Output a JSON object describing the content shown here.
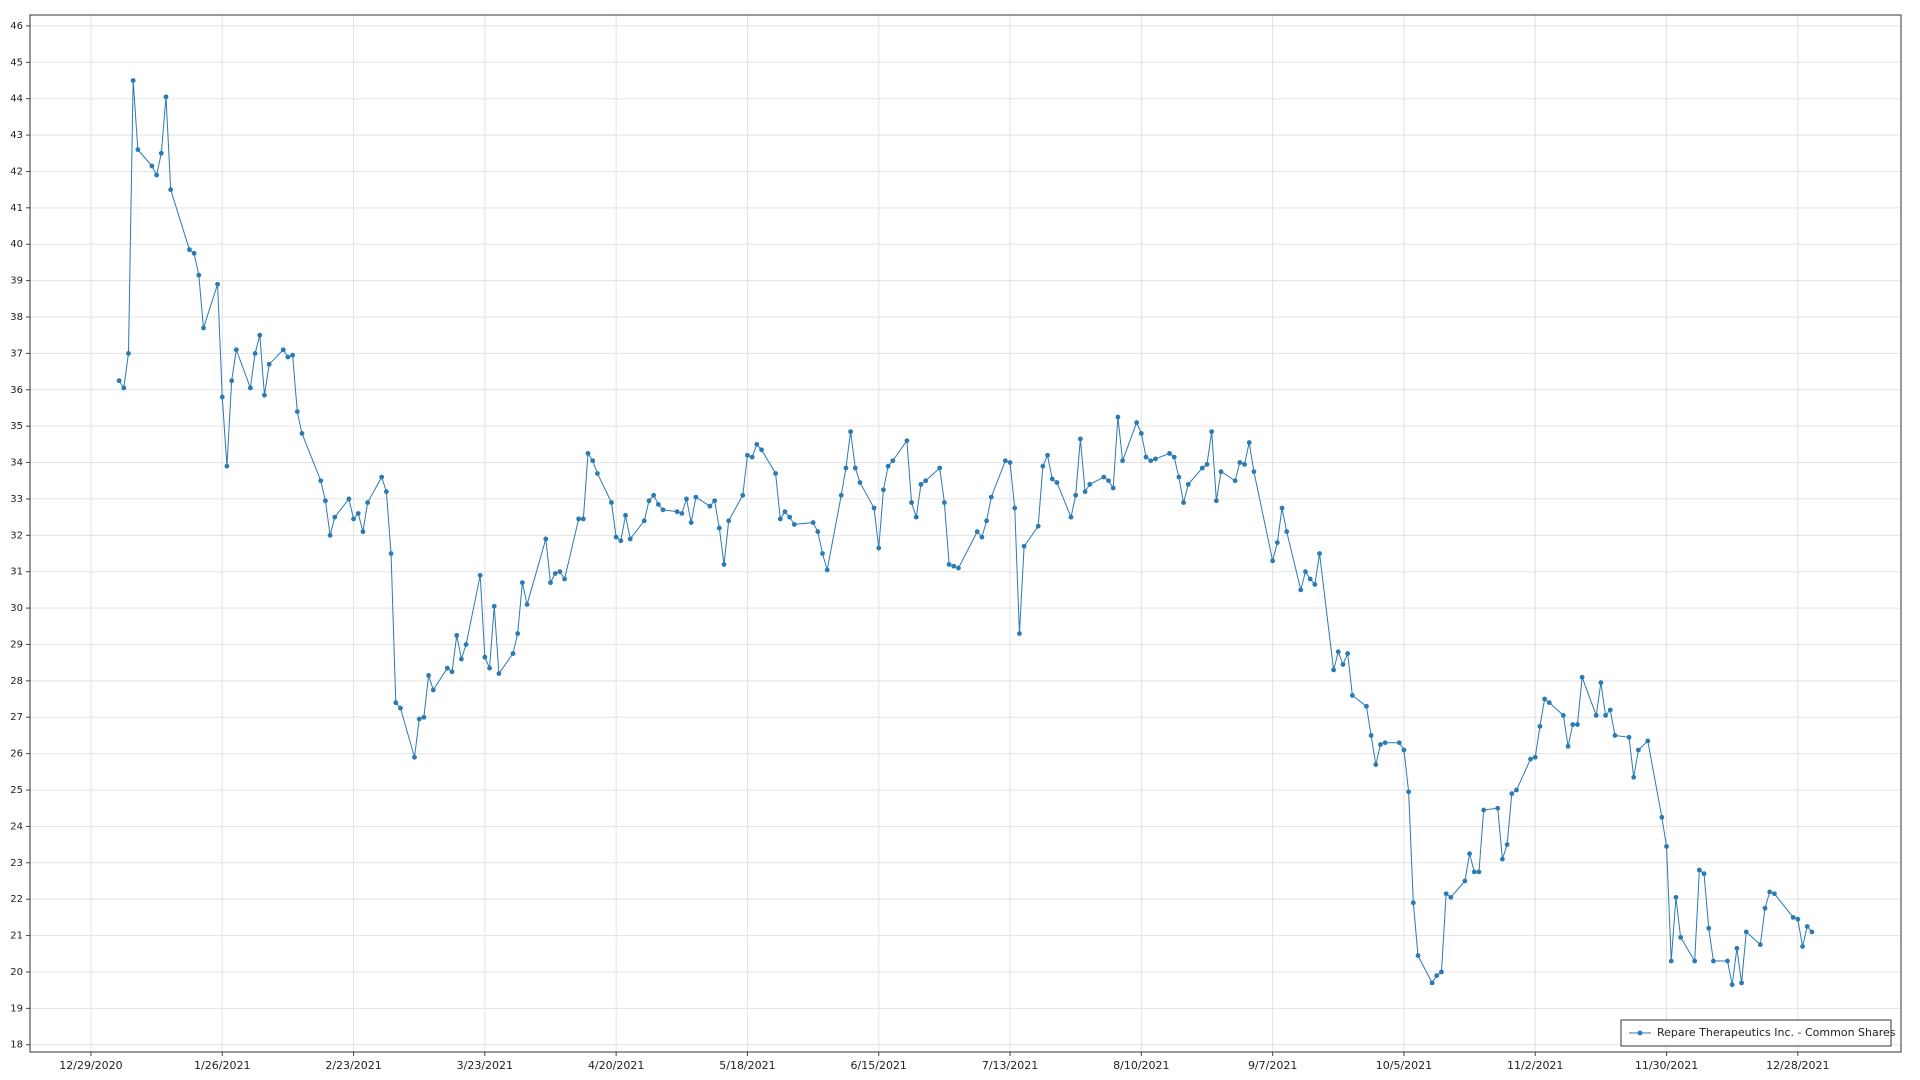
{
  "chart_data": {
    "type": "line",
    "x": [
      "1/4/2021",
      "1/5/2021",
      "1/6/2021",
      "1/7/2021",
      "1/8/2021",
      "1/11/2021",
      "1/12/2021",
      "1/13/2021",
      "1/14/2021",
      "1/15/2021",
      "1/19/2021",
      "1/20/2021",
      "1/21/2021",
      "1/22/2021",
      "1/25/2021",
      "1/26/2021",
      "1/27/2021",
      "1/28/2021",
      "1/29/2021",
      "2/1/2021",
      "2/2/2021",
      "2/3/2021",
      "2/4/2021",
      "2/5/2021",
      "2/8/2021",
      "2/9/2021",
      "2/10/2021",
      "2/11/2021",
      "2/12/2021",
      "2/16/2021",
      "2/17/2021",
      "2/18/2021",
      "2/19/2021",
      "2/22/2021",
      "2/23/2021",
      "2/24/2021",
      "2/25/2021",
      "2/26/2021",
      "3/1/2021",
      "3/2/2021",
      "3/3/2021",
      "3/4/2021",
      "3/5/2021",
      "3/8/2021",
      "3/9/2021",
      "3/10/2021",
      "3/11/2021",
      "3/12/2021",
      "3/15/2021",
      "3/16/2021",
      "3/17/2021",
      "3/18/2021",
      "3/19/2021",
      "3/22/2021",
      "3/23/2021",
      "3/24/2021",
      "3/25/2021",
      "3/26/2021",
      "3/29/2021",
      "3/30/2021",
      "3/31/2021",
      "4/1/2021",
      "4/5/2021",
      "4/6/2021",
      "4/7/2021",
      "4/8/2021",
      "4/9/2021",
      "4/12/2021",
      "4/13/2021",
      "4/14/2021",
      "4/15/2021",
      "4/16/2021",
      "4/19/2021",
      "4/20/2021",
      "4/21/2021",
      "4/22/2021",
      "4/23/2021",
      "4/26/2021",
      "4/27/2021",
      "4/28/2021",
      "4/29/2021",
      "4/30/2021",
      "5/3/2021",
      "5/4/2021",
      "5/5/2021",
      "5/6/2021",
      "5/7/2021",
      "5/10/2021",
      "5/11/2021",
      "5/12/2021",
      "5/13/2021",
      "5/14/2021",
      "5/17/2021",
      "5/18/2021",
      "5/19/2021",
      "5/20/2021",
      "5/21/2021",
      "5/24/2021",
      "5/25/2021",
      "5/26/2021",
      "5/27/2021",
      "5/28/2021",
      "6/1/2021",
      "6/2/2021",
      "6/3/2021",
      "6/4/2021",
      "6/7/2021",
      "6/8/2021",
      "6/9/2021",
      "6/10/2021",
      "6/11/2021",
      "6/14/2021",
      "6/15/2021",
      "6/16/2021",
      "6/17/2021",
      "6/18/2021",
      "6/21/2021",
      "6/22/2021",
      "6/23/2021",
      "6/24/2021",
      "6/25/2021",
      "6/28/2021",
      "6/29/2021",
      "6/30/2021",
      "7/1/2021",
      "7/2/2021",
      "7/6/2021",
      "7/7/2021",
      "7/8/2021",
      "7/9/2021",
      "7/12/2021",
      "7/13/2021",
      "7/14/2021",
      "7/15/2021",
      "7/16/2021",
      "7/19/2021",
      "7/20/2021",
      "7/21/2021",
      "7/22/2021",
      "7/23/2021",
      "7/26/2021",
      "7/27/2021",
      "7/28/2021",
      "7/29/2021",
      "7/30/2021",
      "8/2/2021",
      "8/3/2021",
      "8/4/2021",
      "8/5/2021",
      "8/6/2021",
      "8/9/2021",
      "8/10/2021",
      "8/11/2021",
      "8/12/2021",
      "8/13/2021",
      "8/16/2021",
      "8/17/2021",
      "8/18/2021",
      "8/19/2021",
      "8/20/2021",
      "8/23/2021",
      "8/24/2021",
      "8/25/2021",
      "8/26/2021",
      "8/27/2021",
      "8/30/2021",
      "8/31/2021",
      "9/1/2021",
      "9/2/2021",
      "9/3/2021",
      "9/7/2021",
      "9/8/2021",
      "9/9/2021",
      "9/10/2021",
      "9/13/2021",
      "9/14/2021",
      "9/15/2021",
      "9/16/2021",
      "9/17/2021",
      "9/20/2021",
      "9/21/2021",
      "9/22/2021",
      "9/23/2021",
      "9/24/2021",
      "9/27/2021",
      "9/28/2021",
      "9/29/2021",
      "9/30/2021",
      "10/1/2021",
      "10/4/2021",
      "10/5/2021",
      "10/6/2021",
      "10/7/2021",
      "10/8/2021",
      "10/11/2021",
      "10/12/2021",
      "10/13/2021",
      "10/14/2021",
      "10/15/2021",
      "10/18/2021",
      "10/19/2021",
      "10/20/2021",
      "10/21/2021",
      "10/22/2021",
      "10/25/2021",
      "10/26/2021",
      "10/27/2021",
      "10/28/2021",
      "10/29/2021",
      "11/1/2021",
      "11/2/2021",
      "11/3/2021",
      "11/4/2021",
      "11/5/2021",
      "11/8/2021",
      "11/9/2021",
      "11/10/2021",
      "11/11/2021",
      "11/12/2021",
      "11/15/2021",
      "11/16/2021",
      "11/17/2021",
      "11/18/2021",
      "11/19/2021",
      "11/22/2021",
      "11/23/2021",
      "11/24/2021",
      "11/26/2021",
      "11/29/2021",
      "11/30/2021",
      "12/1/2021",
      "12/2/2021",
      "12/3/2021",
      "12/6/2021",
      "12/7/2021",
      "12/8/2021",
      "12/9/2021",
      "12/10/2021",
      "12/13/2021",
      "12/14/2021",
      "12/15/2021",
      "12/16/2021",
      "12/17/2021",
      "12/20/2021",
      "12/21/2021",
      "12/22/2021",
      "12/23/2021",
      "12/27/2021",
      "12/28/2021",
      "12/29/2021",
      "12/30/2021",
      "12/31/2021"
    ],
    "series": [
      {
        "name": "Repare Therapeutics Inc. - Common Shares",
        "color": "#2a7ab5",
        "values": [
          36.25,
          36.05,
          37.0,
          44.5,
          42.6,
          42.15,
          41.9,
          42.5,
          44.05,
          41.5,
          39.85,
          39.75,
          39.15,
          37.7,
          38.9,
          35.8,
          33.9,
          36.25,
          37.1,
          36.05,
          37.0,
          37.5,
          35.85,
          36.7,
          37.1,
          36.9,
          36.95,
          35.4,
          34.8,
          33.5,
          32.95,
          32.0,
          32.5,
          33.0,
          32.45,
          32.6,
          32.1,
          32.9,
          33.6,
          33.2,
          31.5,
          27.4,
          27.25,
          25.9,
          26.95,
          27.0,
          28.15,
          27.75,
          28.35,
          28.25,
          29.25,
          28.6,
          29.0,
          30.9,
          28.65,
          28.35,
          30.05,
          28.2,
          28.75,
          29.3,
          30.7,
          30.1,
          31.9,
          30.7,
          30.95,
          31.0,
          30.8,
          32.45,
          32.45,
          34.25,
          34.05,
          33.7,
          32.9,
          31.95,
          31.85,
          32.55,
          31.9,
          32.4,
          32.95,
          33.1,
          32.85,
          32.7,
          32.65,
          32.6,
          33.0,
          32.35,
          33.05,
          32.8,
          32.95,
          32.2,
          31.2,
          32.4,
          33.1,
          34.2,
          34.15,
          34.5,
          34.35,
          33.7,
          32.45,
          32.65,
          32.5,
          32.3,
          32.35,
          32.1,
          31.5,
          31.05,
          33.1,
          33.85,
          34.85,
          33.85,
          33.45,
          32.75,
          31.65,
          33.25,
          33.9,
          34.05,
          34.6,
          32.9,
          32.5,
          33.4,
          33.5,
          33.85,
          32.9,
          31.2,
          31.15,
          31.1,
          32.1,
          31.95,
          32.4,
          33.05,
          34.05,
          34.0,
          32.75,
          29.3,
          31.7,
          32.25,
          33.9,
          34.2,
          33.55,
          33.45,
          32.5,
          33.1,
          34.65,
          33.2,
          33.4,
          33.6,
          33.5,
          33.3,
          35.25,
          34.05,
          35.1,
          34.8,
          34.15,
          34.05,
          34.1,
          34.25,
          34.15,
          33.6,
          32.9,
          33.4,
          33.85,
          33.95,
          34.85,
          32.95,
          33.75,
          33.5,
          34.0,
          33.95,
          34.55,
          33.75,
          31.3,
          31.8,
          32.75,
          32.1,
          30.5,
          31.0,
          30.8,
          30.65,
          31.5,
          28.3,
          28.8,
          28.45,
          28.75,
          27.6,
          27.3,
          26.5,
          25.7,
          26.25,
          26.3,
          26.3,
          26.1,
          24.95,
          21.9,
          20.45,
          19.7,
          19.9,
          20.0,
          22.15,
          22.05,
          22.5,
          23.25,
          22.75,
          22.75,
          24.45,
          24.5,
          23.1,
          23.5,
          24.9,
          25.0,
          25.85,
          25.9,
          26.75,
          27.5,
          27.4,
          27.05,
          26.2,
          26.8,
          26.8,
          28.1,
          27.05,
          27.95,
          27.05,
          27.2,
          26.5,
          26.45,
          25.35,
          26.1,
          26.35,
          24.25,
          23.45,
          20.3,
          22.05,
          20.95,
          20.3,
          22.8,
          22.7,
          21.2,
          20.3,
          20.3,
          19.65,
          20.65,
          19.7,
          21.1,
          20.75,
          21.75,
          22.2,
          22.15,
          21.5,
          21.45,
          20.7,
          21.25,
          21.1
        ]
      }
    ],
    "xlim": [
      "12/16/2020",
      "1/19/2022"
    ],
    "xticks": [
      "12/29/2020",
      "1/26/2021",
      "2/23/2021",
      "3/23/2021",
      "4/20/2021",
      "5/18/2021",
      "6/15/2021",
      "7/13/2021",
      "8/10/2021",
      "9/7/2021",
      "10/5/2021",
      "11/2/2021",
      "11/30/2021",
      "12/28/2021"
    ],
    "ylim": [
      17.8,
      46.3
    ],
    "yticks": [
      18,
      19,
      20,
      21,
      22,
      23,
      24,
      25,
      26,
      27,
      28,
      29,
      30,
      31,
      32,
      33,
      34,
      35,
      36,
      37,
      38,
      39,
      40,
      41,
      42,
      43,
      44,
      45,
      46
    ],
    "grid": true,
    "legend": "lower right"
  }
}
